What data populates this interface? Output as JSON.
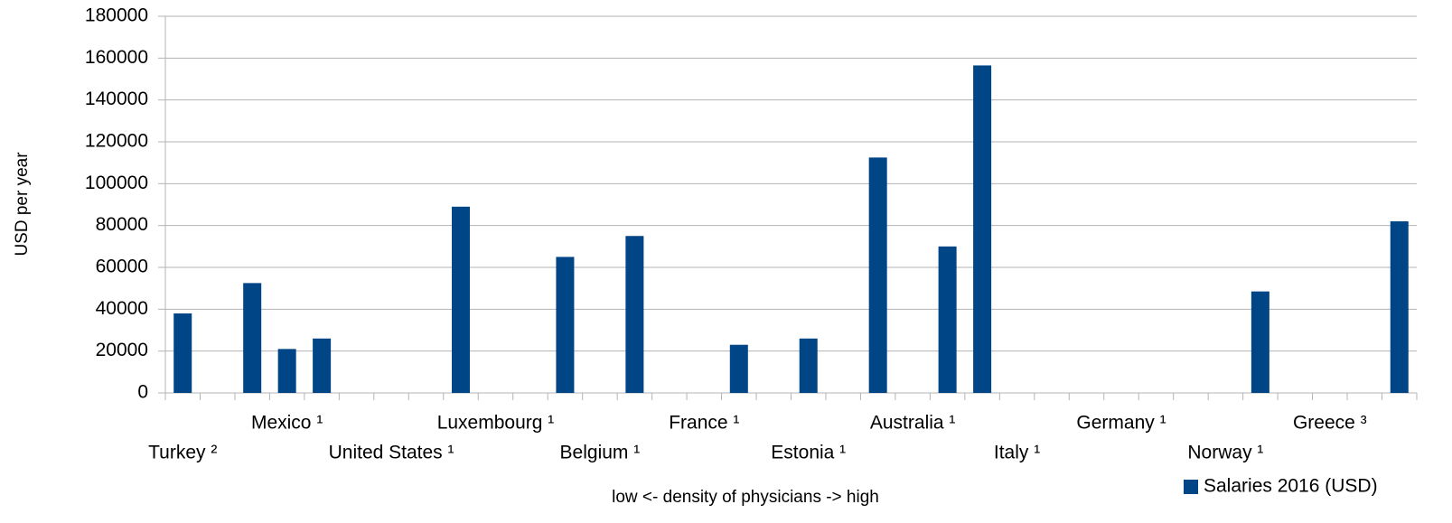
{
  "chart_data": {
    "type": "bar",
    "x_label": "low <- density of physicians -> high",
    "y_label": "USD per year",
    "categories": [
      "Turkey ²",
      null,
      null,
      "Mexico ¹",
      null,
      null,
      "United States ¹",
      null,
      null,
      "Luxembourg ¹",
      null,
      null,
      "Belgium ¹",
      null,
      null,
      "France ¹",
      null,
      null,
      "Estonia ¹",
      null,
      null,
      "Australia ¹",
      null,
      null,
      "Italy ¹",
      null,
      null,
      "Germany ¹",
      null,
      null,
      "Norway ¹",
      null,
      null,
      "Greece ³",
      null,
      null
    ],
    "series": [
      {
        "name": "Salaries 2016 (USD)",
        "color": "#004586",
        "values": [
          38000,
          null,
          52500,
          21000,
          26000,
          null,
          null,
          null,
          89000,
          null,
          null,
          65000,
          null,
          75000,
          null,
          null,
          23000,
          null,
          26000,
          null,
          112500,
          null,
          70000,
          156500,
          null,
          null,
          null,
          null,
          null,
          null,
          null,
          48500,
          null,
          null,
          null,
          82000
        ]
      }
    ],
    "ylim": [
      0,
      180000
    ],
    "yticks": [
      0,
      20000,
      40000,
      60000,
      80000,
      100000,
      120000,
      140000,
      160000,
      180000
    ],
    "grid": true,
    "legend": "bottom-right"
  }
}
